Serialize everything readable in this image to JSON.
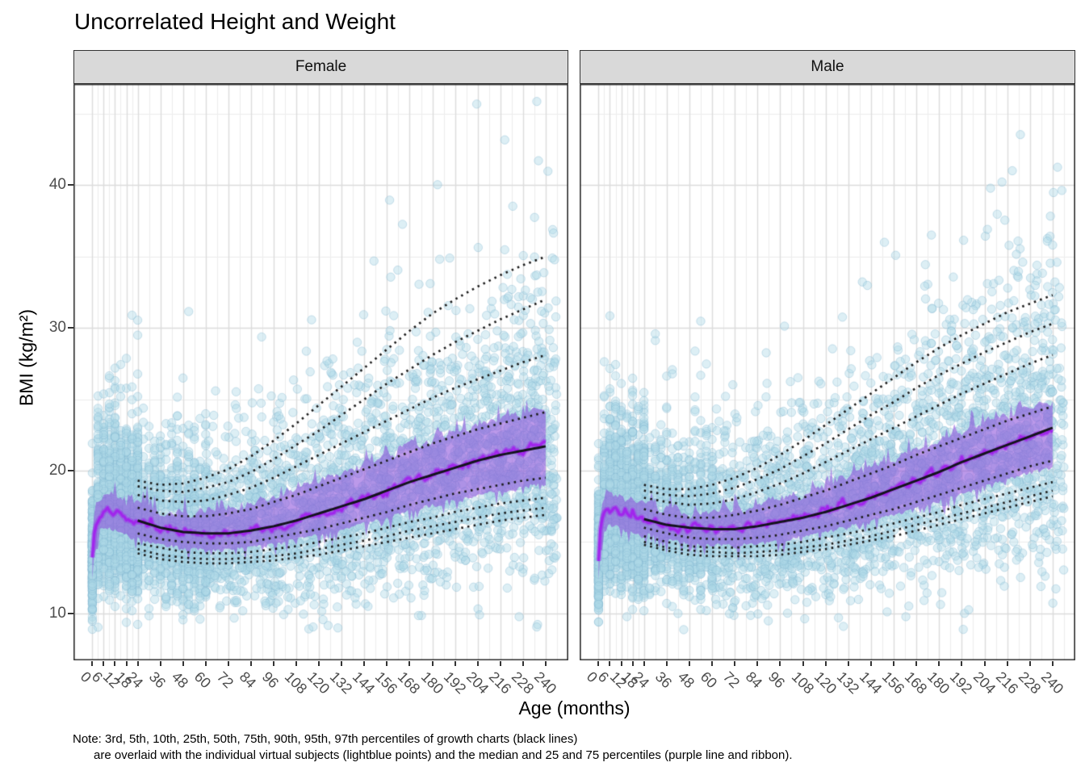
{
  "title": "Uncorrelated Height and Weight",
  "note": {
    "line1": "Note: 3rd, 5th, 10th, 25th, 50th, 75th, 90th, 95th, 97th percentiles of growth charts (black lines)",
    "line2": "are overlaid with the individual virtual subjects (lightblue points) and the median and 25 and 75 percentiles (purple line and ribbon)."
  },
  "chart_data": {
    "type": "scatter",
    "title": "Uncorrelated Height and Weight",
    "xlabel": "Age (months)",
    "ylabel": "BMI (kg/m²)",
    "facets": [
      "Female",
      "Male"
    ],
    "legend": "none",
    "grid": {
      "major": true,
      "minor": true
    },
    "xlim": [
      -10,
      252
    ],
    "ylim": [
      6.7,
      47.1
    ],
    "x_ticks": [
      0,
      6,
      12,
      18,
      24,
      36,
      48,
      60,
      72,
      84,
      96,
      108,
      120,
      132,
      144,
      156,
      168,
      180,
      192,
      204,
      216,
      228,
      240
    ],
    "y_ticks": [
      10,
      20,
      30,
      40
    ],
    "y_minor": [
      5,
      15,
      25,
      35,
      45
    ],
    "percentile_labels": [
      "3rd",
      "5th",
      "10th",
      "25th",
      "50th",
      "75th",
      "90th",
      "95th",
      "97th"
    ],
    "growth_chart_ages": [
      24,
      36,
      48,
      60,
      72,
      84,
      96,
      108,
      120,
      132,
      144,
      156,
      168,
      180,
      192,
      204,
      216,
      228,
      240
    ],
    "growth_chart": {
      "Female": {
        "p3": [
          14.2,
          13.8,
          13.6,
          13.5,
          13.5,
          13.6,
          13.7,
          13.9,
          14.1,
          14.4,
          14.7,
          15.0,
          15.3,
          15.6,
          15.9,
          16.2,
          16.5,
          16.7,
          16.9
        ],
        "p5": [
          14.5,
          14.1,
          13.9,
          13.8,
          13.8,
          13.9,
          14.0,
          14.2,
          14.5,
          14.8,
          15.1,
          15.4,
          15.8,
          16.1,
          16.4,
          16.7,
          17.0,
          17.2,
          17.4
        ],
        "p10": [
          14.9,
          14.6,
          14.3,
          14.2,
          14.2,
          14.3,
          14.5,
          14.7,
          15.0,
          15.3,
          15.6,
          16.0,
          16.4,
          16.7,
          17.1,
          17.4,
          17.7,
          17.9,
          18.1
        ],
        "p25": [
          15.6,
          15.2,
          15.0,
          14.9,
          14.9,
          15.0,
          15.3,
          15.6,
          15.9,
          16.3,
          16.7,
          17.1,
          17.6,
          18.0,
          18.4,
          18.7,
          19.0,
          19.3,
          19.5
        ],
        "p50": [
          16.5,
          16.0,
          15.7,
          15.6,
          15.6,
          15.8,
          16.1,
          16.5,
          17.0,
          17.5,
          18.0,
          18.6,
          19.2,
          19.7,
          20.2,
          20.7,
          21.1,
          21.4,
          21.7
        ],
        "p75": [
          17.4,
          17.0,
          16.8,
          16.8,
          17.0,
          17.3,
          17.8,
          18.3,
          18.9,
          19.5,
          20.1,
          20.7,
          21.3,
          21.9,
          22.4,
          22.9,
          23.3,
          23.7,
          24.1
        ],
        "p90": [
          18.3,
          17.9,
          17.8,
          17.9,
          18.3,
          18.8,
          19.5,
          20.3,
          21.1,
          21.9,
          22.7,
          23.5,
          24.3,
          25.1,
          25.8,
          26.4,
          27.0,
          27.6,
          28.1
        ],
        "p95": [
          18.9,
          18.6,
          18.5,
          18.8,
          19.2,
          19.9,
          20.8,
          21.8,
          22.8,
          23.9,
          25.0,
          26.1,
          27.1,
          28.1,
          29.0,
          29.8,
          30.6,
          31.3,
          32.0
        ],
        "p97": [
          19.3,
          19.0,
          19.1,
          19.5,
          20.1,
          21.0,
          22.1,
          23.3,
          24.6,
          25.9,
          27.2,
          28.5,
          29.8,
          31.0,
          32.0,
          32.9,
          33.7,
          34.4,
          35.0
        ]
      },
      "Male": {
        "p3": [
          14.8,
          14.4,
          14.1,
          14.0,
          14.0,
          14.0,
          14.1,
          14.3,
          14.5,
          14.8,
          15.1,
          15.4,
          15.8,
          16.2,
          16.6,
          17.0,
          17.4,
          17.8,
          18.2
        ],
        "p5": [
          15.0,
          14.6,
          14.4,
          14.3,
          14.2,
          14.3,
          14.4,
          14.6,
          14.8,
          15.1,
          15.4,
          15.8,
          16.2,
          16.6,
          17.0,
          17.4,
          17.8,
          18.2,
          18.6
        ],
        "p10": [
          15.4,
          15.0,
          14.7,
          14.6,
          14.6,
          14.7,
          14.8,
          15.0,
          15.3,
          15.6,
          15.9,
          16.3,
          16.7,
          17.1,
          17.6,
          18.0,
          18.4,
          18.8,
          19.2
        ],
        "p25": [
          16.0,
          15.6,
          15.3,
          15.2,
          15.2,
          15.3,
          15.5,
          15.8,
          16.1,
          16.5,
          16.9,
          17.3,
          17.8,
          18.3,
          18.8,
          19.3,
          19.8,
          20.3,
          20.7
        ],
        "p50": [
          16.6,
          16.2,
          16.0,
          15.9,
          15.9,
          16.1,
          16.4,
          16.7,
          17.1,
          17.6,
          18.1,
          18.7,
          19.3,
          19.9,
          20.6,
          21.2,
          21.8,
          22.4,
          23.0
        ],
        "p75": [
          17.3,
          16.9,
          16.7,
          16.7,
          16.9,
          17.2,
          17.6,
          18.1,
          18.6,
          19.2,
          19.8,
          20.4,
          21.1,
          21.7,
          22.3,
          22.9,
          23.5,
          24.0,
          24.5
        ],
        "p90": [
          18.1,
          17.8,
          17.6,
          17.7,
          18.0,
          18.5,
          19.1,
          19.8,
          20.6,
          21.4,
          22.2,
          23.0,
          23.8,
          24.6,
          25.4,
          26.1,
          26.8,
          27.5,
          28.1
        ],
        "p95": [
          18.6,
          18.3,
          18.2,
          18.4,
          18.8,
          19.4,
          20.1,
          21.0,
          21.9,
          22.9,
          23.9,
          24.8,
          25.8,
          26.7,
          27.5,
          28.3,
          29.0,
          29.7,
          30.3
        ],
        "p97": [
          19.0,
          18.7,
          18.7,
          19.0,
          19.5,
          20.2,
          21.1,
          22.1,
          23.2,
          24.3,
          25.4,
          26.5,
          27.6,
          28.6,
          29.5,
          30.3,
          31.1,
          31.7,
          32.3
        ]
      }
    },
    "simulated": {
      "infant_ages": [
        0,
        1,
        2,
        4,
        6,
        9,
        12,
        15,
        18,
        21,
        24
      ],
      "infant_median": {
        "Female": [
          13.6,
          15.6,
          16.4,
          17.0,
          17.2,
          17.1,
          17.0,
          16.8,
          16.65,
          16.55,
          16.5
        ],
        "Male": [
          13.8,
          15.8,
          16.6,
          17.3,
          17.4,
          17.3,
          17.1,
          16.95,
          16.8,
          16.7,
          16.6
        ]
      },
      "points": {
        "per_facet": 6000,
        "bmi_range_approx": [
          9,
          46
        ],
        "age_range_months": [
          0,
          246
        ]
      },
      "ribbon_follows": [
        "p25",
        "p75"
      ],
      "median_follows": "p50"
    },
    "colors": {
      "points_lightblue": "#ADD8E6",
      "ribbon_purple": "#8B4FDB",
      "median_purple": "#A126EC",
      "growth_lines_black": "#1D1D1D",
      "strip_bg": "#D9D9D9",
      "panel_border": "#333333",
      "grid_major": "#DCDCDC",
      "grid_minor": "#EDEDED",
      "tick_text": "#4D4D4D"
    }
  }
}
